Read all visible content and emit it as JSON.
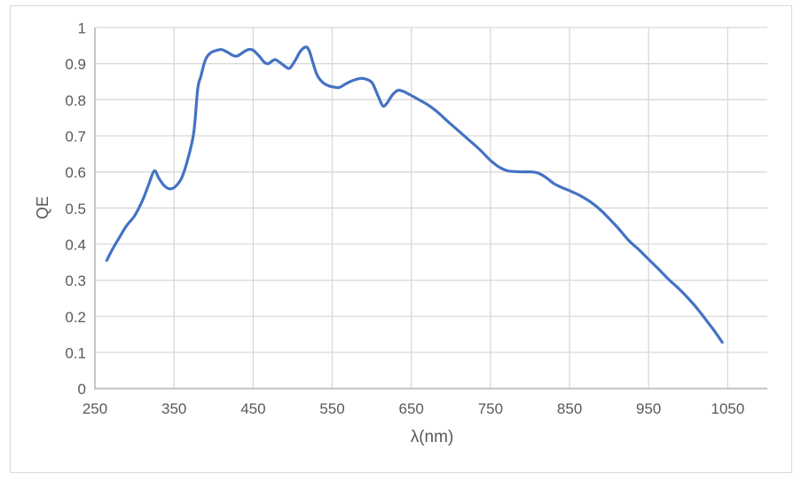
{
  "chart_data": {
    "type": "line",
    "title": "",
    "xlabel": "λ(nm)",
    "ylabel": "QE",
    "xlim": [
      250,
      1100
    ],
    "ylim": [
      0,
      1
    ],
    "grid": true,
    "legend": "none",
    "series_color": "#4472C4",
    "gridline_color": "#D9D9D9",
    "axis_color": "#C0C0C0",
    "label_color": "#595959",
    "x_ticks": [
      {
        "value": 250,
        "label": "250"
      },
      {
        "value": 350,
        "label": "350"
      },
      {
        "value": 450,
        "label": "450"
      },
      {
        "value": 550,
        "label": "550"
      },
      {
        "value": 650,
        "label": "650"
      },
      {
        "value": 750,
        "label": "750"
      },
      {
        "value": 850,
        "label": "850"
      },
      {
        "value": 950,
        "label": "950"
      },
      {
        "value": 1050,
        "label": "1050"
      }
    ],
    "y_ticks": [
      {
        "value": 0,
        "label": "0"
      },
      {
        "value": 0.1,
        "label": "0.1"
      },
      {
        "value": 0.2,
        "label": "0.2"
      },
      {
        "value": 0.3,
        "label": "0.3"
      },
      {
        "value": 0.4,
        "label": "0.4"
      },
      {
        "value": 0.5,
        "label": "0.5"
      },
      {
        "value": 0.6,
        "label": "0.6"
      },
      {
        "value": 0.7,
        "label": "0.7"
      },
      {
        "value": 0.8,
        "label": "0.8"
      },
      {
        "value": 0.9,
        "label": "0.9"
      },
      {
        "value": 1,
        "label": "1"
      }
    ],
    "points": [
      [
        265,
        0.355
      ],
      [
        272,
        0.385
      ],
      [
        280,
        0.415
      ],
      [
        290,
        0.451
      ],
      [
        300,
        0.478
      ],
      [
        310,
        0.52
      ],
      [
        318,
        0.565
      ],
      [
        325,
        0.603
      ],
      [
        331,
        0.582
      ],
      [
        338,
        0.561
      ],
      [
        345,
        0.553
      ],
      [
        352,
        0.56
      ],
      [
        360,
        0.585
      ],
      [
        368,
        0.64
      ],
      [
        375,
        0.71
      ],
      [
        380,
        0.83
      ],
      [
        384,
        0.865
      ],
      [
        388,
        0.9
      ],
      [
        392,
        0.92
      ],
      [
        397,
        0.931
      ],
      [
        403,
        0.936
      ],
      [
        410,
        0.939
      ],
      [
        418,
        0.931
      ],
      [
        424,
        0.923
      ],
      [
        430,
        0.921
      ],
      [
        437,
        0.931
      ],
      [
        444,
        0.939
      ],
      [
        450,
        0.937
      ],
      [
        458,
        0.92
      ],
      [
        464,
        0.904
      ],
      [
        469,
        0.9
      ],
      [
        474,
        0.907
      ],
      [
        478,
        0.911
      ],
      [
        484,
        0.903
      ],
      [
        490,
        0.893
      ],
      [
        496,
        0.887
      ],
      [
        503,
        0.908
      ],
      [
        510,
        0.935
      ],
      [
        517,
        0.946
      ],
      [
        521,
        0.935
      ],
      [
        526,
        0.9
      ],
      [
        531,
        0.868
      ],
      [
        538,
        0.848
      ],
      [
        545,
        0.839
      ],
      [
        552,
        0.835
      ],
      [
        559,
        0.834
      ],
      [
        568,
        0.845
      ],
      [
        577,
        0.854
      ],
      [
        586,
        0.859
      ],
      [
        594,
        0.856
      ],
      [
        601,
        0.845
      ],
      [
        608,
        0.81
      ],
      [
        614,
        0.783
      ],
      [
        619,
        0.79
      ],
      [
        626,
        0.813
      ],
      [
        633,
        0.826
      ],
      [
        640,
        0.823
      ],
      [
        648,
        0.814
      ],
      [
        658,
        0.802
      ],
      [
        670,
        0.787
      ],
      [
        682,
        0.768
      ],
      [
        695,
        0.742
      ],
      [
        708,
        0.717
      ],
      [
        722,
        0.69
      ],
      [
        736,
        0.663
      ],
      [
        750,
        0.632
      ],
      [
        762,
        0.612
      ],
      [
        772,
        0.603
      ],
      [
        782,
        0.601
      ],
      [
        792,
        0.6
      ],
      [
        802,
        0.6
      ],
      [
        810,
        0.597
      ],
      [
        820,
        0.585
      ],
      [
        830,
        0.568
      ],
      [
        840,
        0.557
      ],
      [
        850,
        0.548
      ],
      [
        862,
        0.536
      ],
      [
        875,
        0.519
      ],
      [
        888,
        0.497
      ],
      [
        900,
        0.471
      ],
      [
        912,
        0.443
      ],
      [
        925,
        0.41
      ],
      [
        938,
        0.384
      ],
      [
        950,
        0.358
      ],
      [
        963,
        0.33
      ],
      [
        975,
        0.303
      ],
      [
        988,
        0.277
      ],
      [
        1000,
        0.25
      ],
      [
        1012,
        0.22
      ],
      [
        1024,
        0.186
      ],
      [
        1034,
        0.157
      ],
      [
        1043,
        0.128
      ]
    ]
  }
}
